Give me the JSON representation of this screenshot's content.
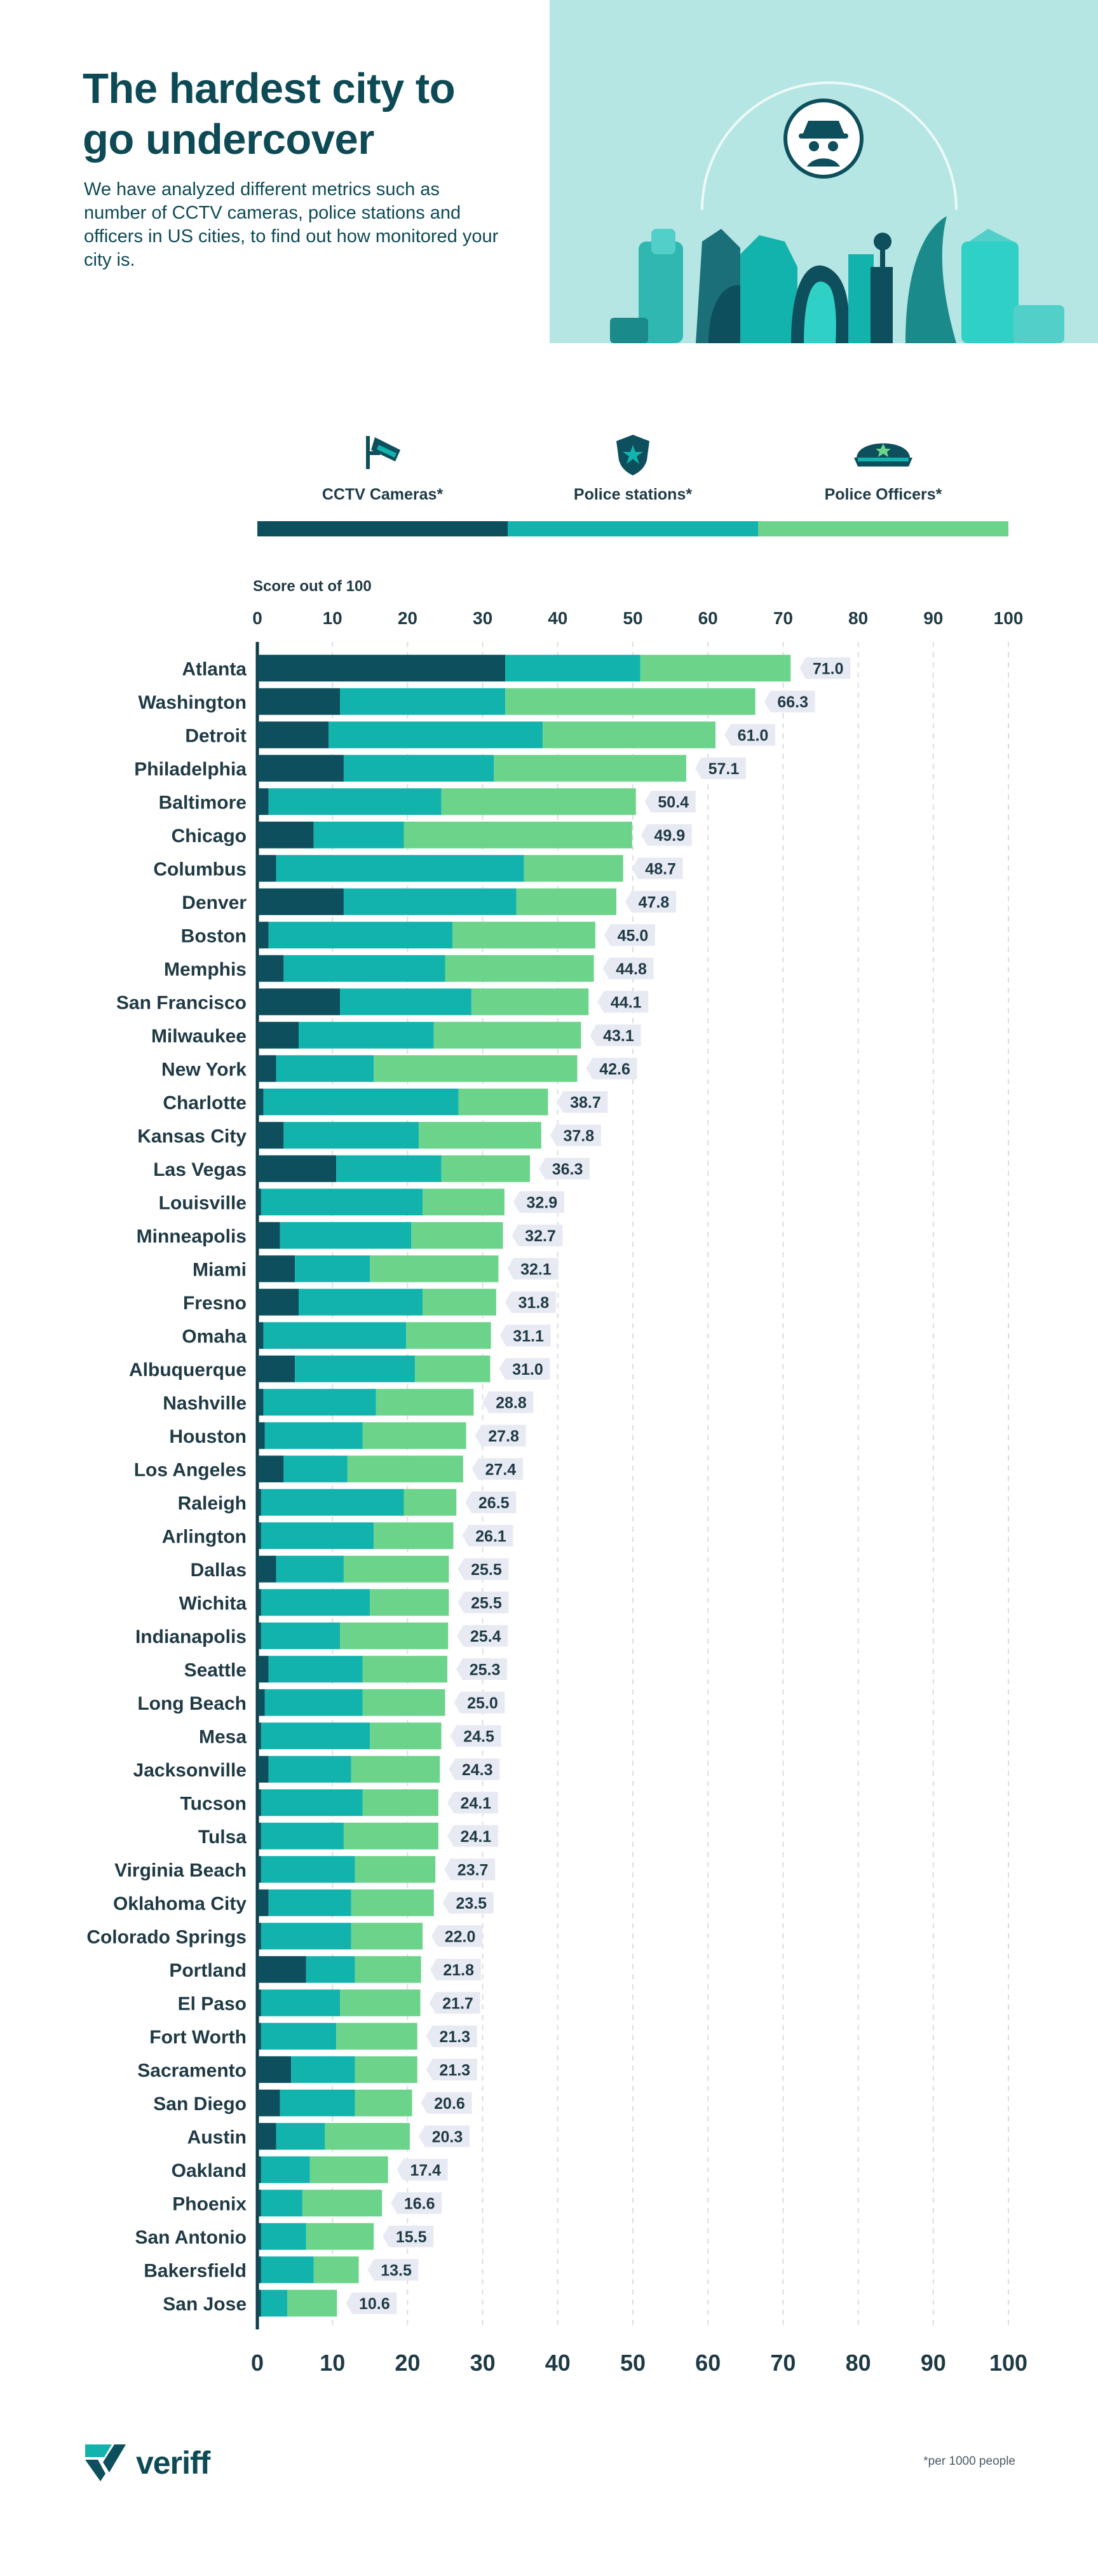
{
  "header": {
    "title": "The hardest city to go undercover",
    "subtitle": "We have analyzed different metrics such as number of CCTV cameras, police stations and officers in US cities, to find out how monitored your city is."
  },
  "colors": {
    "cctv": "#0d4f5c",
    "stations": "#13b3ad",
    "officers": "#6bd48a",
    "hero_bg": "#b5e6e3"
  },
  "legend": {
    "cctv_label": "CCTV Cameras*",
    "stations_label": "Police stations*",
    "officers_label": "Police Officers*"
  },
  "chart_data": {
    "type": "bar",
    "orientation": "horizontal",
    "stacked": true,
    "title": "Score out of 100",
    "xlabel": "Score out of 100",
    "xlim": [
      0,
      100
    ],
    "xticks": [
      0,
      10,
      20,
      30,
      40,
      50,
      60,
      70,
      80,
      90,
      100
    ],
    "categories": [
      "Atlanta",
      "Washington",
      "Detroit",
      "Philadelphia",
      "Baltimore",
      "Chicago",
      "Columbus",
      "Denver",
      "Boston",
      "Memphis",
      "San Francisco",
      "Milwaukee",
      "New York",
      "Charlotte",
      "Kansas City",
      "Las Vegas",
      "Louisville",
      "Minneapolis",
      "Miami",
      "Fresno",
      "Omaha",
      "Albuquerque",
      "Nashville",
      "Houston",
      "Los Angeles",
      "Raleigh",
      "Arlington",
      "Dallas",
      "Wichita",
      "Indianapolis",
      "Seattle",
      "Long Beach",
      "Mesa",
      "Jacksonville",
      "Tucson",
      "Tulsa",
      "Virginia Beach",
      "Oklahoma City",
      "Colorado Springs",
      "Portland",
      "El Paso",
      "Fort Worth",
      "Sacramento",
      "San Diego",
      "Austin",
      "Oakland",
      "Phoenix",
      "San Antonio",
      "Bakersfield",
      "San Jose"
    ],
    "series": [
      {
        "name": "CCTV Cameras*",
        "values": [
          33.0,
          11.0,
          9.5,
          11.5,
          1.5,
          7.5,
          2.5,
          11.5,
          1.5,
          3.5,
          11.0,
          5.5,
          2.5,
          0.8,
          3.5,
          10.5,
          0.5,
          3.0,
          5.0,
          5.5,
          0.8,
          5.0,
          0.8,
          1.0,
          3.5,
          0.5,
          0.5,
          2.5,
          0.5,
          0.5,
          1.5,
          1.0,
          0.5,
          1.5,
          0.5,
          0.5,
          0.5,
          1.5,
          0.5,
          6.5,
          0.5,
          0.5,
          4.5,
          3.0,
          2.5,
          0.5,
          0.5,
          0.5,
          0.5,
          0.5
        ]
      },
      {
        "name": "Police stations*",
        "values": [
          18.0,
          22.0,
          28.5,
          20.0,
          23.0,
          12.0,
          33.0,
          23.0,
          24.5,
          21.5,
          17.5,
          18.0,
          13.0,
          26.0,
          18.0,
          14.0,
          21.5,
          17.5,
          10.0,
          16.5,
          19.0,
          16.0,
          15.0,
          13.0,
          8.5,
          19.0,
          15.0,
          9.0,
          14.5,
          10.5,
          12.5,
          13.0,
          14.5,
          11.0,
          13.5,
          11.0,
          12.5,
          11.0,
          12.0,
          6.5,
          10.5,
          10.0,
          8.5,
          10.0,
          6.5,
          6.5,
          5.5,
          6.0,
          7.0,
          3.5
        ]
      },
      {
        "name": "Police Officers*",
        "values": [
          20.0,
          33.3,
          23.0,
          25.6,
          25.9,
          30.4,
          13.2,
          13.3,
          19.0,
          19.8,
          15.6,
          19.6,
          27.1,
          11.9,
          16.3,
          11.8,
          10.9,
          12.2,
          17.1,
          9.8,
          11.3,
          10.0,
          13.0,
          13.8,
          15.4,
          7.0,
          10.6,
          14.0,
          10.5,
          14.4,
          11.3,
          11.0,
          9.5,
          11.8,
          10.1,
          12.6,
          10.7,
          11.0,
          9.5,
          8.8,
          10.7,
          10.8,
          8.3,
          7.6,
          11.3,
          10.4,
          10.6,
          9.0,
          6.0,
          6.6
        ]
      },
      {
        "name": "Total",
        "values": [
          71.0,
          66.3,
          61.0,
          57.1,
          50.4,
          49.9,
          48.7,
          47.8,
          45.0,
          44.8,
          44.1,
          43.1,
          42.6,
          38.7,
          37.8,
          36.3,
          32.9,
          32.7,
          32.1,
          31.8,
          31.1,
          31.0,
          28.8,
          27.8,
          27.4,
          26.5,
          26.1,
          25.5,
          25.5,
          25.4,
          25.3,
          25.0,
          24.5,
          24.3,
          24.1,
          24.1,
          23.7,
          23.5,
          22.0,
          21.8,
          21.7,
          21.3,
          21.3,
          20.6,
          20.3,
          17.4,
          16.6,
          15.5,
          13.5,
          10.6
        ]
      }
    ],
    "value_labels": [
      "71.0",
      "66.3",
      "61.0",
      "57.1",
      "50.4",
      "49.9",
      "48.7",
      "47.8",
      "45.0",
      "44.8",
      "44.1",
      "43.1",
      "42.6",
      "38.7",
      "37.8",
      "36.3",
      "32.9",
      "32.7",
      "32.1",
      "31.8",
      "31.1",
      "31.0",
      "28.8",
      "27.8",
      "27.4",
      "26.5",
      "26.1",
      "25.5",
      "25.5",
      "25.4",
      "25.3",
      "25.0",
      "24.5",
      "24.3",
      "24.1",
      "24.1",
      "23.7",
      "23.5",
      "22.0",
      "21.8",
      "21.7",
      "21.3",
      "21.3",
      "20.6",
      "20.3",
      "17.4",
      "16.6",
      "15.5",
      "13.5",
      "10.6"
    ],
    "grid": "vertical dashed",
    "legend": "top"
  },
  "footer": {
    "brand": "veriff",
    "footnote": "*per 1000 people"
  }
}
